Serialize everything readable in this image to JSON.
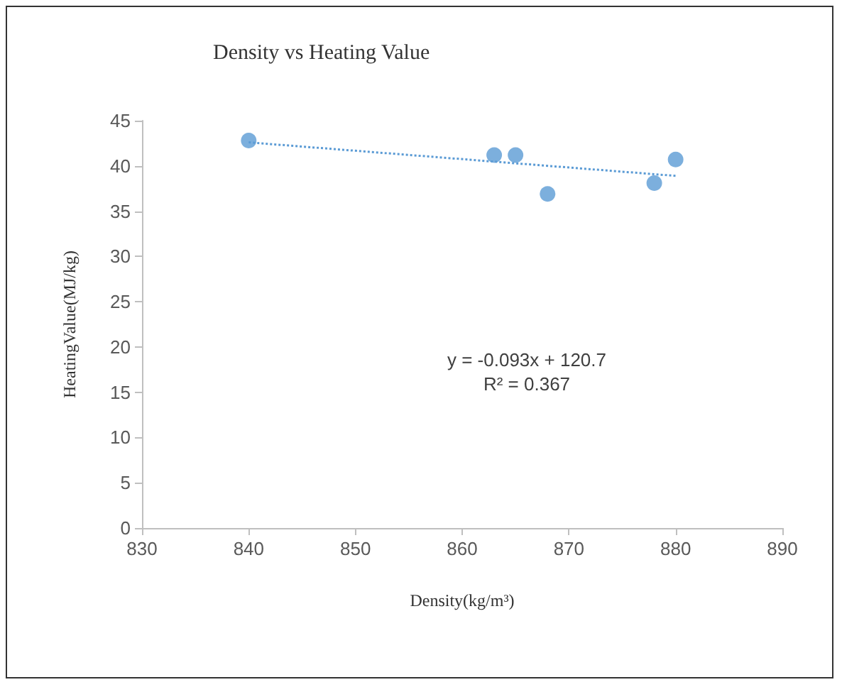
{
  "chart_data": {
    "type": "scatter",
    "title": "Density vs Heating Value",
    "xlabel": "Density(kg/m³)",
    "ylabel": "HeatingValue(MJ/kg)",
    "xlim": [
      830,
      890
    ],
    "xticks": [
      830,
      840,
      850,
      860,
      870,
      880,
      890
    ],
    "ylim": [
      0,
      45
    ],
    "yticks": [
      0,
      5,
      10,
      15,
      20,
      25,
      30,
      35,
      40,
      45
    ],
    "grid": false,
    "marker": "circle",
    "series": [
      {
        "color": "#5b9bd5",
        "x": [
          840,
          863,
          865,
          868,
          878,
          880
        ],
        "values": [
          42.8,
          41.2,
          41.2,
          36.9,
          38.1,
          40.7
        ]
      },
      {
        "type": "line",
        "color": "#5b9bd5",
        "x": [
          840,
          880
        ],
        "values": [
          42.6,
          38.9
        ],
        "line_style": "dotted",
        "marker": "none"
      }
    ],
    "annotations": [
      "y = -0.093x + 120.7",
      "R² = 0.367"
    ]
  }
}
